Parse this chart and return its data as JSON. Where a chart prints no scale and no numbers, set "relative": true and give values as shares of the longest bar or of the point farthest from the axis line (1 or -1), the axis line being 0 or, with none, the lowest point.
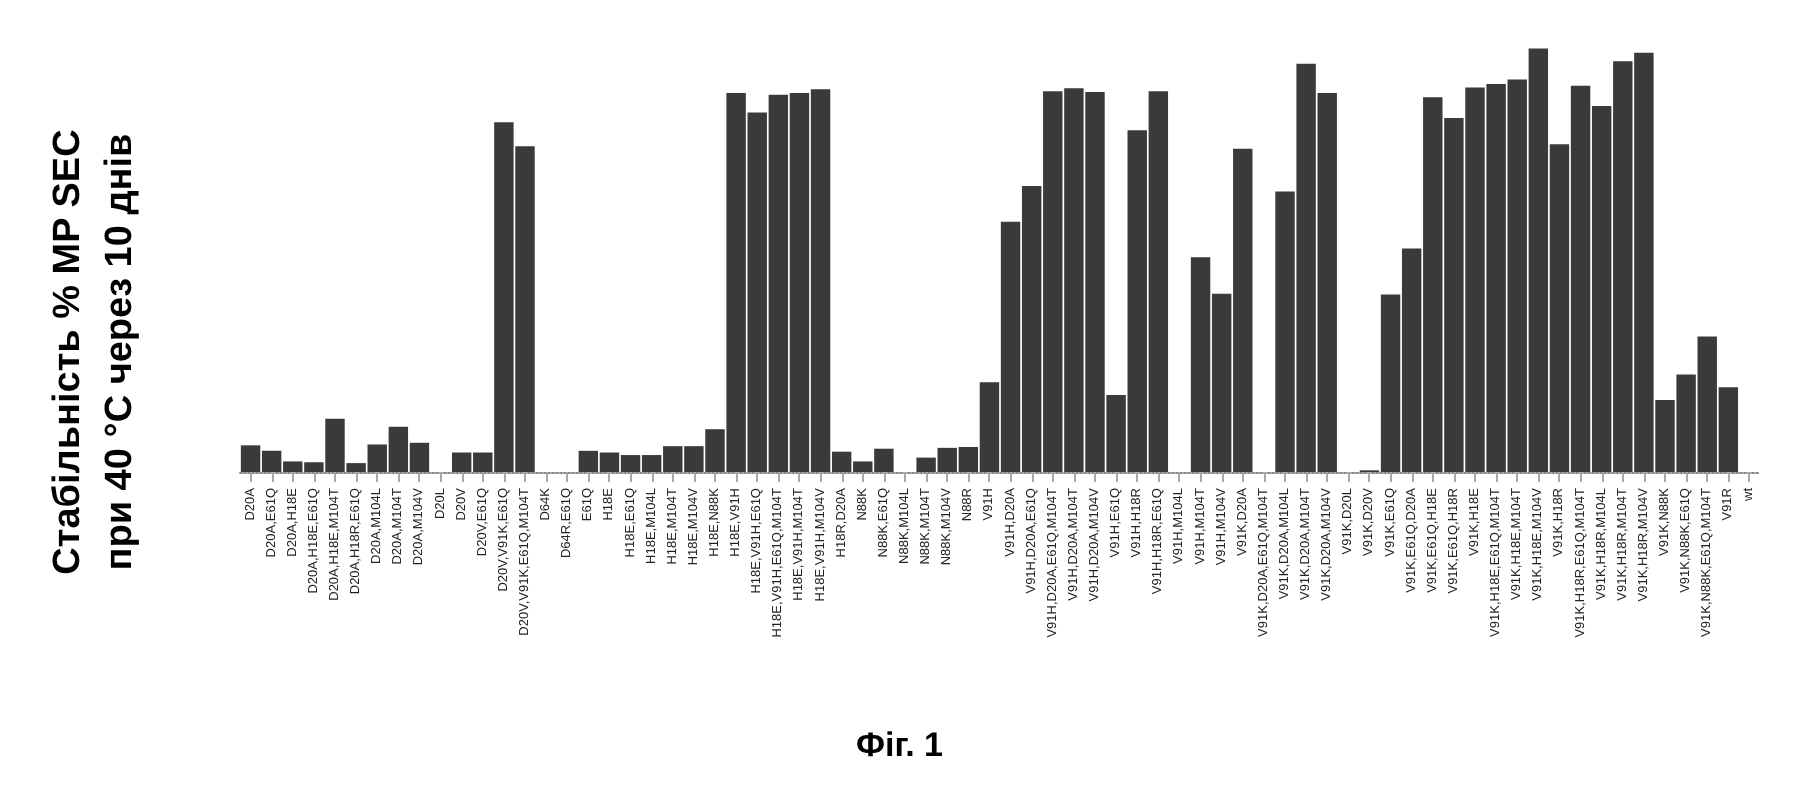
{
  "chart_data": {
    "type": "bar",
    "relative": true,
    "ylabel": "Стабільність % MP SEC\nпри 40 °C через 10 днів",
    "annotations": [
      "Фіг. 1"
    ],
    "color": "#3a3a3a",
    "categories": [
      "D20A",
      "D20A,E61Q",
      "D20A,H18E",
      "D20A,H18E,E61Q",
      "D20A,H18E,M104T",
      "D20A,H18R,E61Q",
      "D20A,M104L",
      "D20A,M104T",
      "D20A,M104V",
      "D20L",
      "D20V",
      "D20V,E61Q",
      "D20V,V91K,E61Q",
      "D20V,V91K,E61Q,M104T",
      "D64K",
      "D64R,E61Q",
      "E61Q",
      "H18E",
      "H18E,E61Q",
      "H18E,M104L",
      "H18E,M104T",
      "H18E,M104V",
      "H18E,N88K",
      "H18E,V91H",
      "H18E,V91H,E61Q",
      "H18E,V91H,E61Q,M104T",
      "H18E,V91H,M104T",
      "H18E,V91H,M104V",
      "H18R,D20A",
      "N88K",
      "N88K,E61Q",
      "N88K,M104L",
      "N88K,M104T",
      "N88K,M104V",
      "N88R",
      "V91H",
      "V91H,D20A",
      "V91H,D20A,E61Q",
      "V91H,D20A,E61Q,M104T",
      "V91H,D20A,M104T",
      "V91H,D20A,M104V",
      "V91H,E61Q",
      "V91H,H18R",
      "V91H,H18R,E61Q",
      "V91H,M104L",
      "V91H,M104T",
      "V91H,M104V",
      "V91K,D20A",
      "V91K,D20A,E61Q,M104T",
      "V91K,D20A,M104L",
      "V91K,D20A,M104T",
      "V91K,D20A,M104V",
      "V91K,D20L",
      "V91K,D20V",
      "V91K,E61Q",
      "V91K,E61Q,D20A",
      "V91K,E61Q,H18E",
      "V91K,E61Q,H18R",
      "V91K,H18E",
      "V91K,H18E,E61Q,M104T",
      "V91K,H18E,M104T",
      "V91K,H18E,M104V",
      "V91K,H18R",
      "V91K,H18R,E61Q,M104T",
      "V91K,H18R,M104L",
      "V91K,H18R,M104T",
      "V91K,H18R,M104V",
      "V91K,N88K",
      "V91K,N88K,E61Q",
      "V91K,N88K,E61Q,M104T",
      "V91R",
      "wt"
    ],
    "values": [
      0.063,
      0.05,
      0.025,
      0.023,
      0.126,
      0.021,
      0.065,
      0.107,
      0.069,
      0,
      0.046,
      0.046,
      0.826,
      0.769,
      0,
      0,
      0.05,
      0.046,
      0.04,
      0.04,
      0.061,
      0.061,
      0.101,
      0.895,
      0.849,
      0.891,
      0.895,
      0.904,
      0.048,
      0.025,
      0.055,
      0,
      0.034,
      0.057,
      0.059,
      0.212,
      0.591,
      0.675,
      0.899,
      0.906,
      0.897,
      0.182,
      0.807,
      0.899,
      0,
      0.507,
      0.421,
      0.763,
      0,
      0.662,
      0.964,
      0.895,
      0,
      0.004,
      0.419,
      0.528,
      0.885,
      0.836,
      0.908,
      0.916,
      0.927,
      1,
      0.774,
      0.912,
      0.864,
      0.97,
      0.99,
      0.17,
      0.23,
      0.32,
      0.2,
      0
    ]
  }
}
